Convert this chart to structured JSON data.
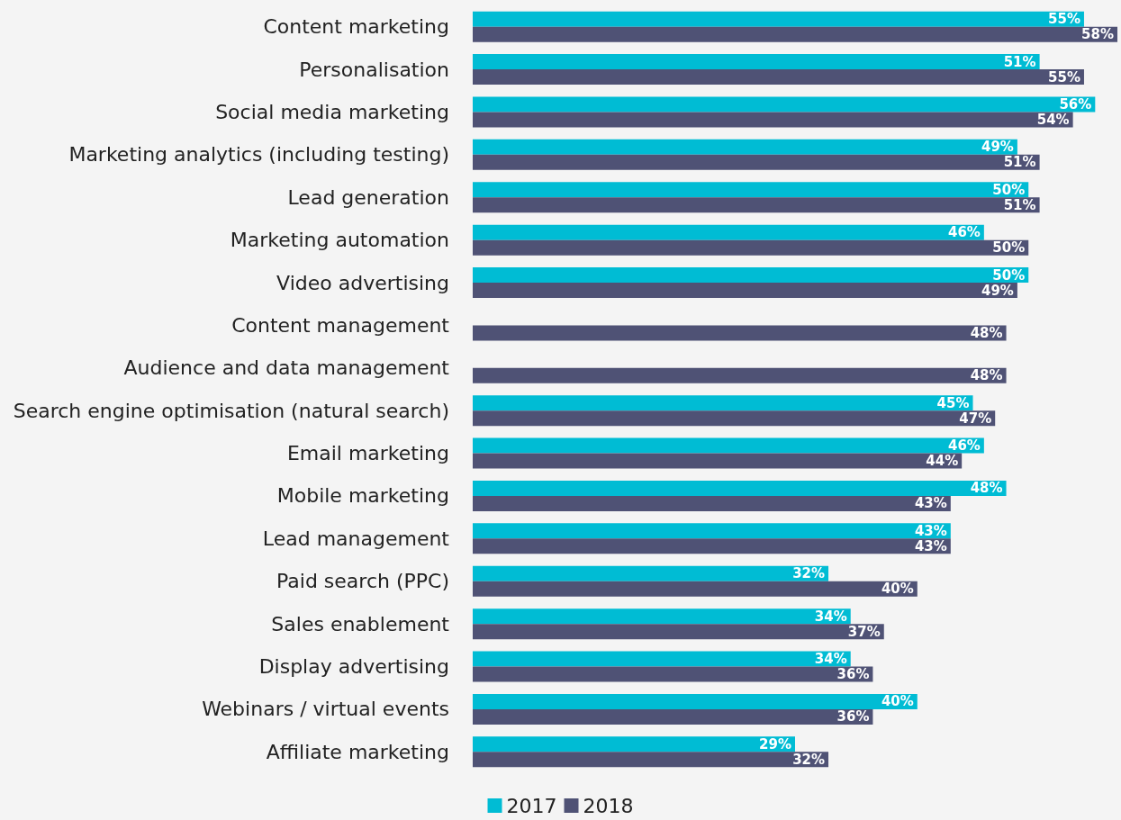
{
  "chart_data": {
    "type": "bar",
    "orientation": "horizontal",
    "legend": "bottom",
    "categories": [
      "Content marketing",
      "Personalisation",
      "Social media marketing",
      "Marketing analytics (including testing)",
      "Lead generation",
      "Marketing automation",
      "Video advertising",
      "Content management",
      "Audience and data management",
      "Search engine optimisation (natural search)",
      "Email marketing",
      "Mobile marketing",
      "Lead management",
      "Paid search (PPC)",
      "Sales enablement",
      "Display advertising",
      "Webinars / virtual events",
      "Affiliate marketing"
    ],
    "series": [
      {
        "name": "2017",
        "color": "#00bcd4",
        "values": [
          55,
          51,
          56,
          49,
          50,
          46,
          50,
          null,
          null,
          45,
          46,
          48,
          43,
          32,
          34,
          34,
          40,
          29
        ],
        "value_labels": [
          "55%",
          "51%",
          "56%",
          "49%",
          "50%",
          "46%",
          "50%",
          null,
          null,
          "45%",
          "46%",
          "48%",
          "43%",
          "32%",
          "34%",
          "34%",
          "40%",
          "29%"
        ]
      },
      {
        "name": "2018",
        "color": "#4f5275",
        "values": [
          58,
          55,
          54,
          51,
          51,
          50,
          49,
          48,
          48,
          47,
          44,
          43,
          43,
          40,
          37,
          36,
          36,
          32
        ],
        "value_labels": [
          "58%",
          "55%",
          "54%",
          "51%",
          "51%",
          "50%",
          "49%",
          "48%",
          "48%",
          "47%",
          "44%",
          "43%",
          "43%",
          "40%",
          "37%",
          "36%",
          "36%",
          "32%"
        ]
      }
    ]
  }
}
